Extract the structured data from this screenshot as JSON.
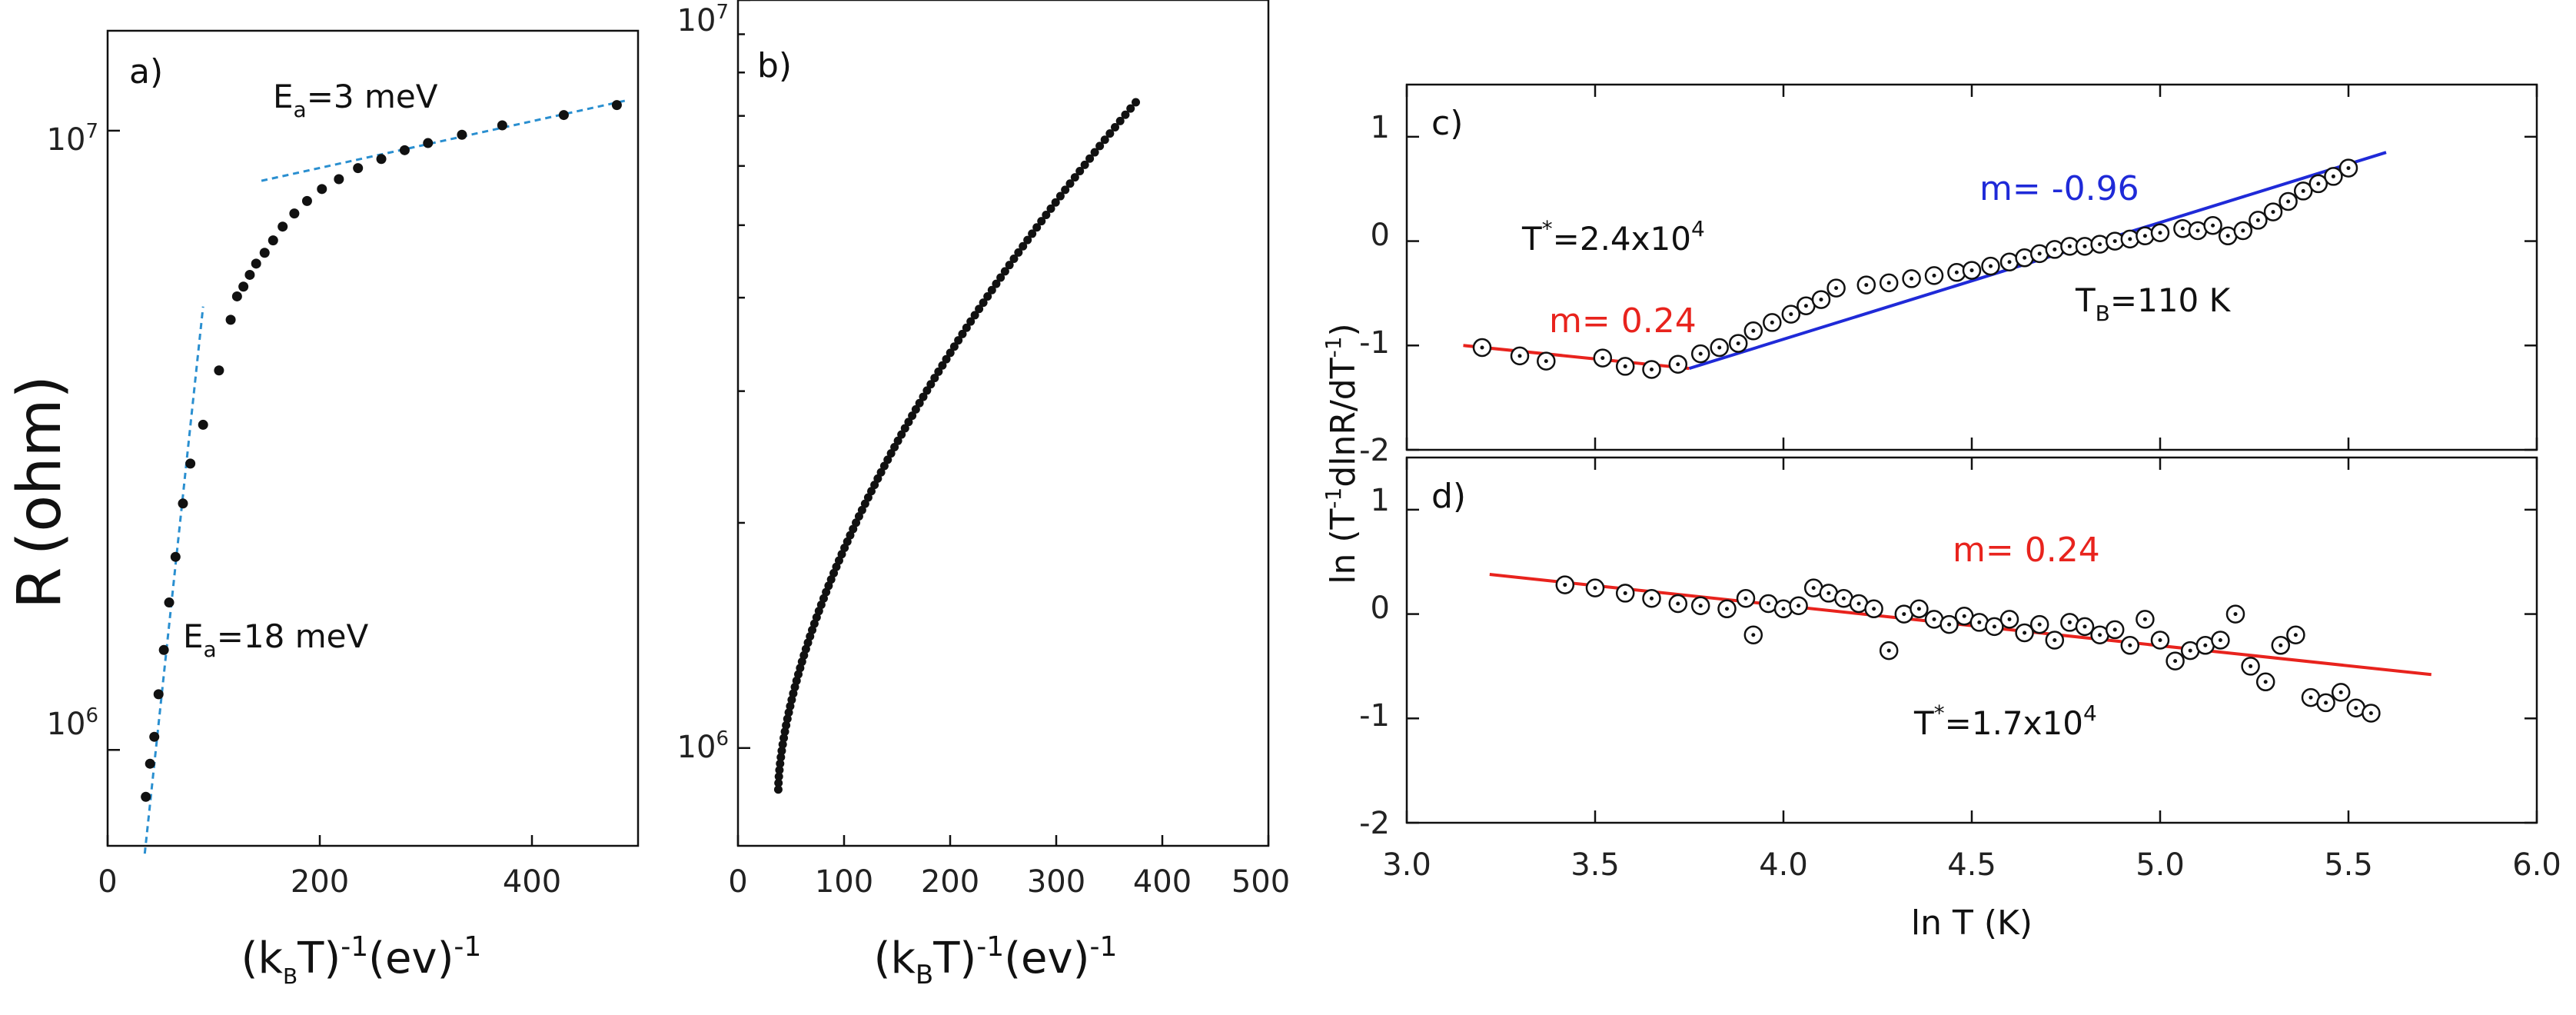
{
  "colors": {
    "fit_dashed": "#2a8fd0",
    "fit_red": "#e8231d",
    "fit_blue": "#1f2ad8",
    "marker": "#111111"
  },
  "chart_data": [
    {
      "id": "a",
      "type": "scatter",
      "panel_label": "a)",
      "xlabel": {
        "open": "(k",
        "sub": "B",
        "mid": "T)",
        "sup1": "-1",
        "tail": "(ev)",
        "sup2": "-1"
      },
      "ylabel": "R (ohm)",
      "xlim": [
        0,
        500
      ],
      "xticks": [
        0,
        200,
        400
      ],
      "ylim_log": [
        700000,
        14500000
      ],
      "yticks": [
        {
          "value": 1000000,
          "base": "10",
          "exp": "6"
        },
        {
          "value": 10000000,
          "base": "10",
          "exp": "7"
        }
      ],
      "x": [
        36,
        40,
        44,
        48,
        53,
        58,
        64,
        71,
        78,
        90,
        105,
        116,
        122,
        128,
        134,
        140,
        148,
        156,
        165,
        176,
        188,
        202,
        218,
        236,
        258,
        280,
        302,
        334,
        372,
        430,
        480
      ],
      "y": [
        840000,
        950000,
        1050000,
        1230000,
        1450000,
        1730000,
        2050000,
        2500000,
        2900000,
        3350000,
        4100000,
        4950000,
        5400000,
        5600000,
        5850000,
        6100000,
        6350000,
        6650000,
        7000000,
        7350000,
        7700000,
        8050000,
        8350000,
        8700000,
        9000000,
        9300000,
        9550000,
        9850000,
        10200000,
        10600000,
        11000000
      ],
      "fits": [
        {
          "name": "Ea=18 meV fit",
          "x": [
            35,
            90
          ],
          "y": [
            680000,
            5200000
          ]
        },
        {
          "name": "Ea=3 meV fit",
          "x": [
            145,
            490
          ],
          "y": [
            8300000,
            11200000
          ]
        }
      ],
      "annotations": [
        {
          "name": "ea-3",
          "base": "E",
          "sub": "a",
          "rest": "=3 meV"
        },
        {
          "name": "ea-18",
          "base": "E",
          "sub": "a",
          "rest": "=18 meV"
        }
      ]
    },
    {
      "id": "b",
      "type": "scatter",
      "panel_label": "b)",
      "xlabel": {
        "open": "(k",
        "sub": "B",
        "mid": "T)",
        "sup1": "-1",
        "tail": "(ev)",
        "sup2": "-1"
      },
      "xlim": [
        0,
        500
      ],
      "xticks": [
        0,
        100,
        200,
        300,
        400,
        500
      ],
      "ylim_log": [
        740000,
        10000000
      ],
      "yticks": [
        {
          "value": 1000000,
          "base": "10",
          "exp": "6"
        },
        {
          "value": 10000000,
          "base": "10",
          "exp": "7"
        }
      ],
      "x_range": [
        38,
        375
      ],
      "y_range": [
        880000,
        7300000
      ],
      "n_points": 110
    },
    {
      "id": "c",
      "type": "scatter",
      "panel_label": "c)",
      "xlim": [
        3.0,
        6.0
      ],
      "ylim": [
        -2,
        1.5
      ],
      "yticks": [
        -2,
        -1,
        0,
        1
      ],
      "x": [
        3.2,
        3.3,
        3.37,
        3.52,
        3.58,
        3.65,
        3.72,
        3.78,
        3.83,
        3.88,
        3.92,
        3.97,
        4.02,
        4.06,
        4.1,
        4.14,
        4.22,
        4.28,
        4.34,
        4.4,
        4.46,
        4.5,
        4.55,
        4.6,
        4.64,
        4.68,
        4.72,
        4.76,
        4.8,
        4.84,
        4.88,
        4.92,
        4.96,
        5.0,
        5.06,
        5.1,
        5.14,
        5.18,
        5.22,
        5.26,
        5.3,
        5.34,
        5.38,
        5.42,
        5.46,
        5.5
      ],
      "y": [
        -1.02,
        -1.1,
        -1.15,
        -1.12,
        -1.2,
        -1.23,
        -1.18,
        -1.08,
        -1.02,
        -0.98,
        -0.86,
        -0.78,
        -0.7,
        -0.62,
        -0.56,
        -0.45,
        -0.42,
        -0.4,
        -0.36,
        -0.33,
        -0.3,
        -0.28,
        -0.24,
        -0.2,
        -0.16,
        -0.12,
        -0.08,
        -0.05,
        -0.05,
        -0.03,
        0.0,
        0.02,
        0.05,
        0.08,
        0.12,
        0.1,
        0.15,
        0.05,
        0.1,
        0.2,
        0.28,
        0.38,
        0.48,
        0.55,
        0.62,
        0.7
      ],
      "fits": [
        {
          "name": "red-fit",
          "color_key": "fit_red",
          "x": [
            3.15,
            3.75
          ],
          "y": [
            -1.0,
            -1.22
          ]
        },
        {
          "name": "blue-fit",
          "color_key": "fit_blue",
          "x": [
            3.75,
            5.6
          ],
          "y": [
            -1.22,
            0.85
          ]
        }
      ],
      "annotations": {
        "m_red": "m= 0.24",
        "m_blue": "m= -0.96",
        "tstar_base": "T",
        "tstar_sup": "*",
        "tstar_mid": "=2.4x10",
        "tstar_exp": "4",
        "tb_base": "T",
        "tb_sub": "B",
        "tb_rest": "=110 K"
      }
    },
    {
      "id": "d",
      "type": "scatter",
      "panel_label": "d)",
      "xlabel": "ln T (K)",
      "xlim": [
        3.0,
        6.0
      ],
      "xticks": [
        "3.0",
        "3.5",
        "4.0",
        "4.5",
        "5.0",
        "5.5",
        "6.0"
      ],
      "ylim": [
        -2,
        1.5
      ],
      "yticks": [
        -2,
        -1,
        0,
        1
      ],
      "x": [
        3.42,
        3.5,
        3.58,
        3.65,
        3.72,
        3.78,
        3.85,
        3.9,
        3.92,
        3.96,
        4.0,
        4.04,
        4.08,
        4.12,
        4.16,
        4.2,
        4.24,
        4.28,
        4.32,
        4.36,
        4.4,
        4.44,
        4.48,
        4.52,
        4.56,
        4.6,
        4.64,
        4.68,
        4.72,
        4.76,
        4.8,
        4.84,
        4.88,
        4.92,
        4.96,
        5.0,
        5.04,
        5.08,
        5.12,
        5.16,
        5.2,
        5.24,
        5.28,
        5.32,
        5.36,
        5.4,
        5.44,
        5.48,
        5.52,
        5.56
      ],
      "y": [
        0.28,
        0.25,
        0.2,
        0.15,
        0.1,
        0.08,
        0.05,
        0.15,
        -0.2,
        0.1,
        0.05,
        0.08,
        0.25,
        0.2,
        0.15,
        0.1,
        0.05,
        -0.35,
        0.0,
        0.05,
        -0.05,
        -0.1,
        -0.02,
        -0.08,
        -0.12,
        -0.05,
        -0.18,
        -0.1,
        -0.25,
        -0.08,
        -0.12,
        -0.2,
        -0.15,
        -0.3,
        -0.05,
        -0.25,
        -0.45,
        -0.35,
        -0.3,
        -0.25,
        0.0,
        -0.5,
        -0.65,
        -0.3,
        -0.2,
        -0.8,
        -0.85,
        -0.75,
        -0.9,
        -0.95
      ],
      "fits": [
        {
          "name": "red-fit",
          "color_key": "fit_red",
          "x": [
            3.22,
            5.72
          ],
          "y": [
            0.38,
            -0.58
          ]
        }
      ],
      "annotations": {
        "m_red": "m= 0.24",
        "tstar_base": "T",
        "tstar_sup": "*",
        "tstar_mid": "=1.7x10",
        "tstar_exp": "4"
      }
    }
  ],
  "shared_ylabel_cd": {
    "pre": "ln (T",
    "sup1": "-1",
    "mid": "dlnR/dT",
    "sup2": "-1",
    "post": ")"
  }
}
